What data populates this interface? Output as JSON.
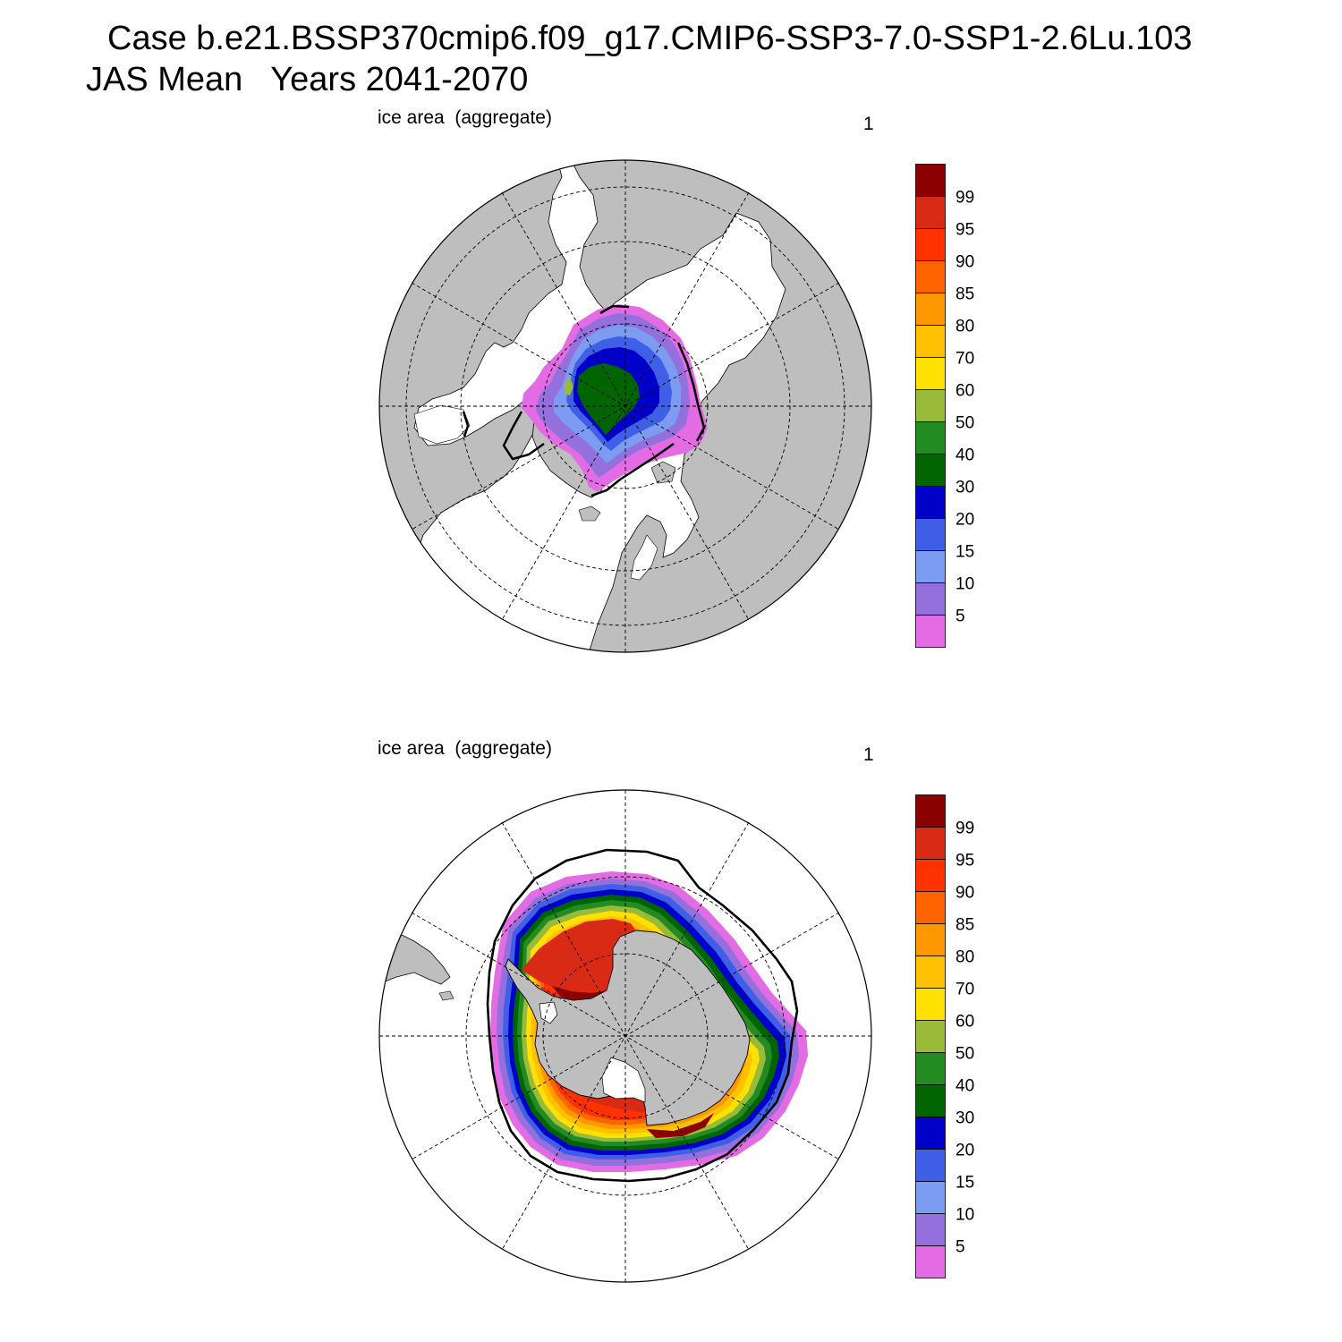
{
  "title": {
    "line1": "Case b.e21.BSSP370cmip6.f09_g17.CMIP6-SSP3-7.0-SSP1-2.6Lu.103",
    "line2": "JAS Mean   Years 2041-2070"
  },
  "panels": [
    {
      "id": "north",
      "label": "ice area  (aggregate)",
      "number": "1"
    },
    {
      "id": "south",
      "label": "ice area  (aggregate)",
      "number": "1"
    }
  ],
  "colorbar": {
    "levels": [
      "5",
      "10",
      "15",
      "20",
      "30",
      "40",
      "50",
      "60",
      "70",
      "80",
      "85",
      "90",
      "95",
      "99"
    ],
    "colors": [
      "#e36be3",
      "#9370db",
      "#7b9cf0",
      "#3f60e6",
      "#0000c8",
      "#006400",
      "#228b22",
      "#9aba3a",
      "#ffe100",
      "#ffc000",
      "#ff9800",
      "#ff6400",
      "#ff3200",
      "#d82a14",
      "#8b0000"
    ]
  },
  "colors": {
    "land": "#bebebe",
    "ocean": "#ffffff"
  }
}
